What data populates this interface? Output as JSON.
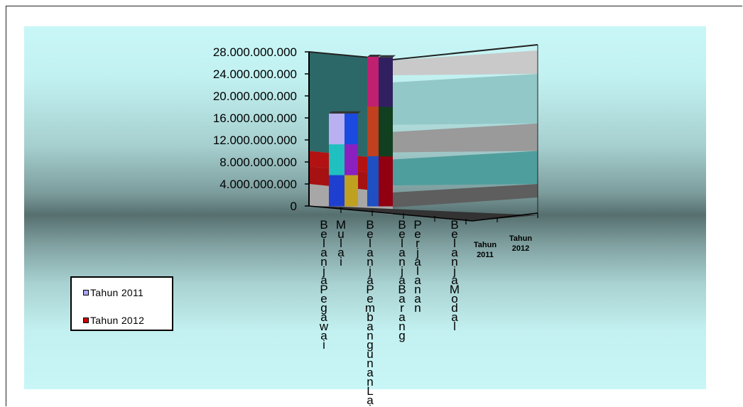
{
  "chart_data": {
    "type": "bar",
    "title": "",
    "xlabel": "",
    "ylabel": "",
    "ylim": [
      0,
      28000000000
    ],
    "yticks": [
      "28.000.000.000",
      "24.000.000.000",
      "20.000.000.000",
      "16.000.000.000",
      "12.000.000.000",
      "8.000.000.000",
      "4.000.000.000",
      "0"
    ],
    "yticks_values": [
      28000000000,
      24000000000,
      20000000000,
      16000000000,
      12000000000,
      8000000000,
      4000000000,
      0
    ],
    "categories": [
      "BelanjaPegawai",
      "Mulai",
      "BelanjaPembangunanLain",
      "BelanjaBarang",
      "Perjalanan",
      "BelanjaModal"
    ],
    "category_labels_vertical": [
      "BelanjaPegawai",
      "Mulai",
      "BelanjaPembangunanLain",
      "BelanjaBarang",
      "Perjalanan",
      "BelanjaModal"
    ],
    "series_depth_labels": [
      "Tahun 2011",
      "Tahun 2012"
    ],
    "series": [
      {
        "name": "Tahun 2011",
        "values": [
          16800000000,
          0,
          27100000000,
          0,
          0,
          0
        ]
      },
      {
        "name": "Tahun 2012",
        "values": [
          16800000000,
          0,
          27000000000,
          0,
          0,
          0
        ]
      }
    ],
    "grid": true,
    "legend": "bottom-left",
    "style": "3d"
  },
  "legend": {
    "items": [
      {
        "label": "Tahun 2011",
        "color": "#a8a6ff"
      },
      {
        "label": "Tahun 2012",
        "color": "#cc0000"
      }
    ]
  },
  "colors": {
    "series_2011": "#a8a6ff",
    "series_2012": "#cc0000"
  }
}
